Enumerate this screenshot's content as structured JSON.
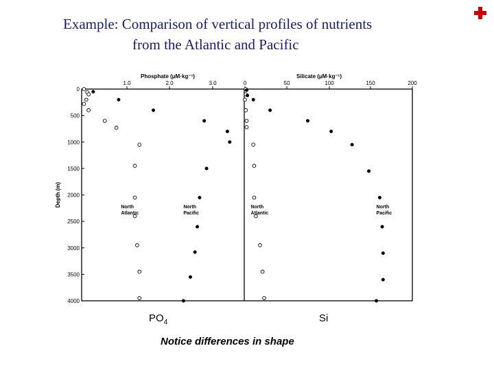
{
  "slide": {
    "title_line1": "Example: Comparison of vertical profiles of nutrients",
    "title_line2": "from the Atlantic and Pacific",
    "label_po4_main": "PO",
    "label_po4_sub": "4",
    "label_si": "Si",
    "note": "Notice differences in shape",
    "accent_color": "#cc0000",
    "title_color": "#1a1a66",
    "logo_icon": "red-cross-icon"
  },
  "chart_data": [
    {
      "type": "scatter",
      "title": "Phosphate (μM·kg⁻¹)",
      "xlabel": "Phosphate (μM·kg⁻¹)",
      "ylabel": "Depth (m)",
      "xlim": [
        0,
        3.5
      ],
      "ylim": [
        4000,
        0
      ],
      "x_ticks": [
        "1.0",
        "2.0",
        "3.0"
      ],
      "y_ticks": [
        "0",
        "500",
        "1000",
        "1500",
        "2000",
        "2500",
        "3000",
        "3500",
        "4000"
      ],
      "annotations": [
        {
          "text": "North Atlantic",
          "x": 0.85,
          "depth": 2250
        },
        {
          "text": "North Pacific",
          "x": 2.2,
          "depth": 2250
        }
      ],
      "series": [
        {
          "name": "North Atlantic",
          "marker": "open",
          "points": [
            {
              "x": 0.05,
              "y": 0
            },
            {
              "x": 0.12,
              "y": 60
            },
            {
              "x": 0.15,
              "y": 100
            },
            {
              "x": 0.1,
              "y": 200
            },
            {
              "x": 0.05,
              "y": 280
            },
            {
              "x": 0.15,
              "y": 400
            },
            {
              "x": 0.5,
              "y": 600
            },
            {
              "x": 0.75,
              "y": 730
            },
            {
              "x": 1.25,
              "y": 1050
            },
            {
              "x": 1.15,
              "y": 1450
            },
            {
              "x": 1.15,
              "y": 2050
            },
            {
              "x": 1.15,
              "y": 2400
            },
            {
              "x": 1.2,
              "y": 2950
            },
            {
              "x": 1.25,
              "y": 3450
            },
            {
              "x": 1.25,
              "y": 3950
            }
          ]
        },
        {
          "name": "North Pacific",
          "marker": "filled",
          "points": [
            {
              "x": 0.25,
              "y": 50
            },
            {
              "x": 0.8,
              "y": 200
            },
            {
              "x": 1.55,
              "y": 400
            },
            {
              "x": 2.65,
              "y": 600
            },
            {
              "x": 3.15,
              "y": 800
            },
            {
              "x": 3.2,
              "y": 1000
            },
            {
              "x": 2.7,
              "y": 1500
            },
            {
              "x": 2.55,
              "y": 2050
            },
            {
              "x": 2.5,
              "y": 2600
            },
            {
              "x": 2.45,
              "y": 3080
            },
            {
              "x": 2.35,
              "y": 3550
            },
            {
              "x": 2.2,
              "y": 4000
            }
          ]
        }
      ]
    },
    {
      "type": "scatter",
      "title": "Silicate (μM·kg⁻¹)",
      "xlabel": "Silicate (μM·kg⁻¹)",
      "ylabel": "Depth (m)",
      "xlim": [
        0,
        200
      ],
      "ylim": [
        4000,
        0
      ],
      "x_ticks": [
        "0",
        "50",
        "100",
        "150",
        "200"
      ],
      "annotations": [
        {
          "text": "North Atlantic",
          "x": 7,
          "depth": 2250
        },
        {
          "text": "North Pacific",
          "x": 157,
          "depth": 2250
        }
      ],
      "series": [
        {
          "name": "North Atlantic",
          "marker": "open",
          "points": [
            {
              "x": 1,
              "y": 0
            },
            {
              "x": 1,
              "y": 100
            },
            {
              "x": 0,
              "y": 200
            },
            {
              "x": 1,
              "y": 400
            },
            {
              "x": 2,
              "y": 600
            },
            {
              "x": 2,
              "y": 720
            },
            {
              "x": 10,
              "y": 1050
            },
            {
              "x": 11,
              "y": 1450
            },
            {
              "x": 11,
              "y": 2050
            },
            {
              "x": 13,
              "y": 2400
            },
            {
              "x": 18,
              "y": 2950
            },
            {
              "x": 21,
              "y": 3450
            },
            {
              "x": 23,
              "y": 3950
            }
          ]
        },
        {
          "name": "North Pacific",
          "marker": "filled",
          "points": [
            {
              "x": 2,
              "y": 20
            },
            {
              "x": 3,
              "y": 120
            },
            {
              "x": 10,
              "y": 200
            },
            {
              "x": 30,
              "y": 400
            },
            {
              "x": 75,
              "y": 600
            },
            {
              "x": 103,
              "y": 800
            },
            {
              "x": 128,
              "y": 1050
            },
            {
              "x": 148,
              "y": 1550
            },
            {
              "x": 161,
              "y": 2050
            },
            {
              "x": 164,
              "y": 2600
            },
            {
              "x": 165,
              "y": 3100
            },
            {
              "x": 165,
              "y": 3600
            },
            {
              "x": 157,
              "y": 4000
            }
          ]
        }
      ]
    }
  ]
}
